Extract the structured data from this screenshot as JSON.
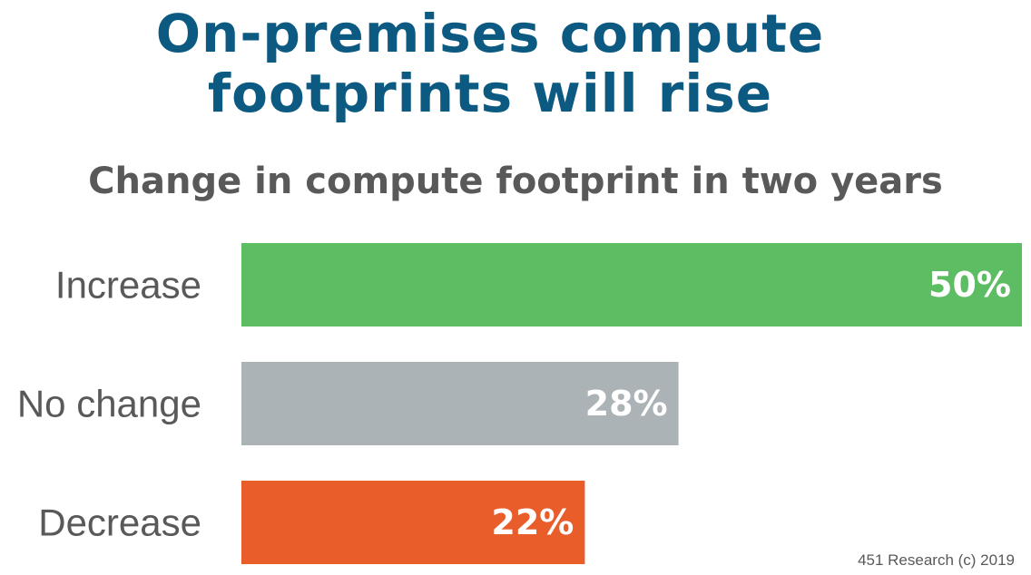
{
  "title_line1": "On-premises compute",
  "title_line2": "footprints will rise",
  "source": "451 Research (c) 2019",
  "colors": {
    "title": "#0c5a82",
    "text": "#595959",
    "increase": "#5cbd62",
    "no_change": "#abb3b6",
    "decrease": "#e95d2b"
  },
  "chart_data": {
    "type": "bar",
    "orientation": "horizontal",
    "title": "Change in compute footprint in two years",
    "categories": [
      "Increase",
      "No change",
      "Decrease"
    ],
    "values": [
      50,
      28,
      22
    ],
    "value_labels": [
      "50%",
      "28%",
      "22%"
    ],
    "bar_colors": [
      "#5cbd62",
      "#abb3b6",
      "#e95d2b"
    ],
    "unit": "%",
    "xlim": [
      0,
      50
    ],
    "grid": false,
    "legend": "none"
  }
}
